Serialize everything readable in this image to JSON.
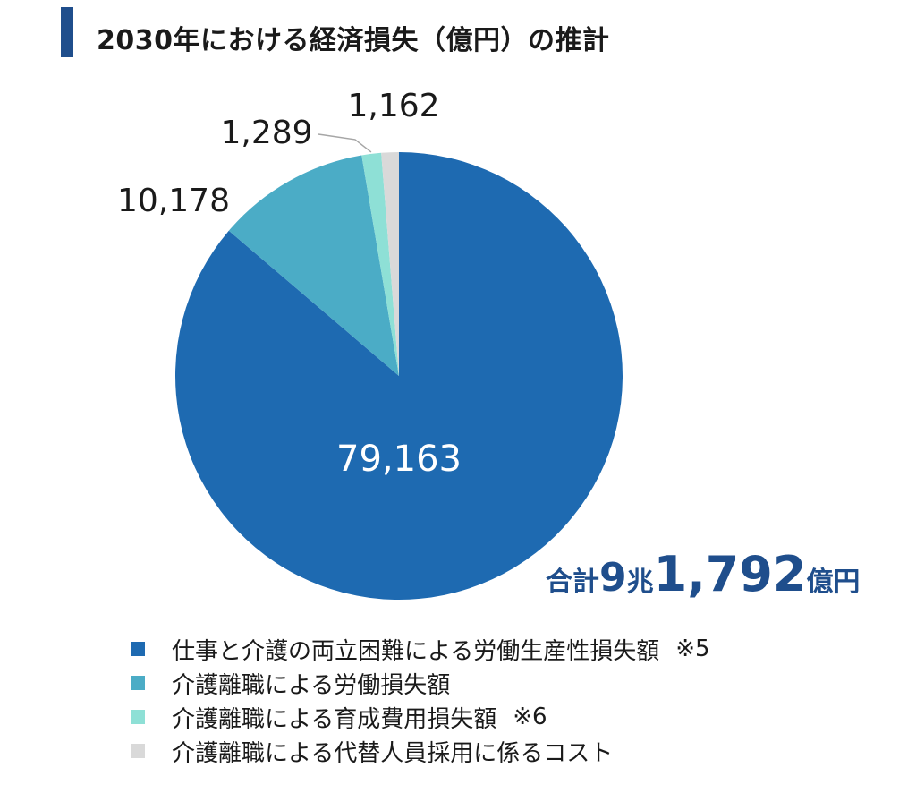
{
  "title": "2030年における経済損失（億円）の推計",
  "total": {
    "prefix": "合計",
    "num1": "9",
    "unit1": "兆",
    "num2": "1,792",
    "unit2": "億円"
  },
  "colors": {
    "title_bar": "#1f4e8c",
    "total_text": "#1f4e8c"
  },
  "chart_data": {
    "type": "pie",
    "title": "2030年における経済損失（億円）の推計",
    "slices": [
      {
        "name": "仕事と介護の両立困難による労働生産性損失額",
        "note": "※5",
        "value": 79163,
        "label": "79,163",
        "color": "#1e6ab1"
      },
      {
        "name": "介護離職による労働損失額",
        "note": "",
        "value": 10178,
        "label": "10,178",
        "color": "#4bacc6"
      },
      {
        "name": "介護離職による育成費用損失額",
        "note": "※6",
        "value": 1289,
        "label": "1,289",
        "color": "#8ee0d6"
      },
      {
        "name": "介護離職による代替人員採用に係るコスト",
        "note": "",
        "value": 1162,
        "label": "1,162",
        "color": "#d9d9d9"
      }
    ],
    "legend_position": "bottom"
  }
}
